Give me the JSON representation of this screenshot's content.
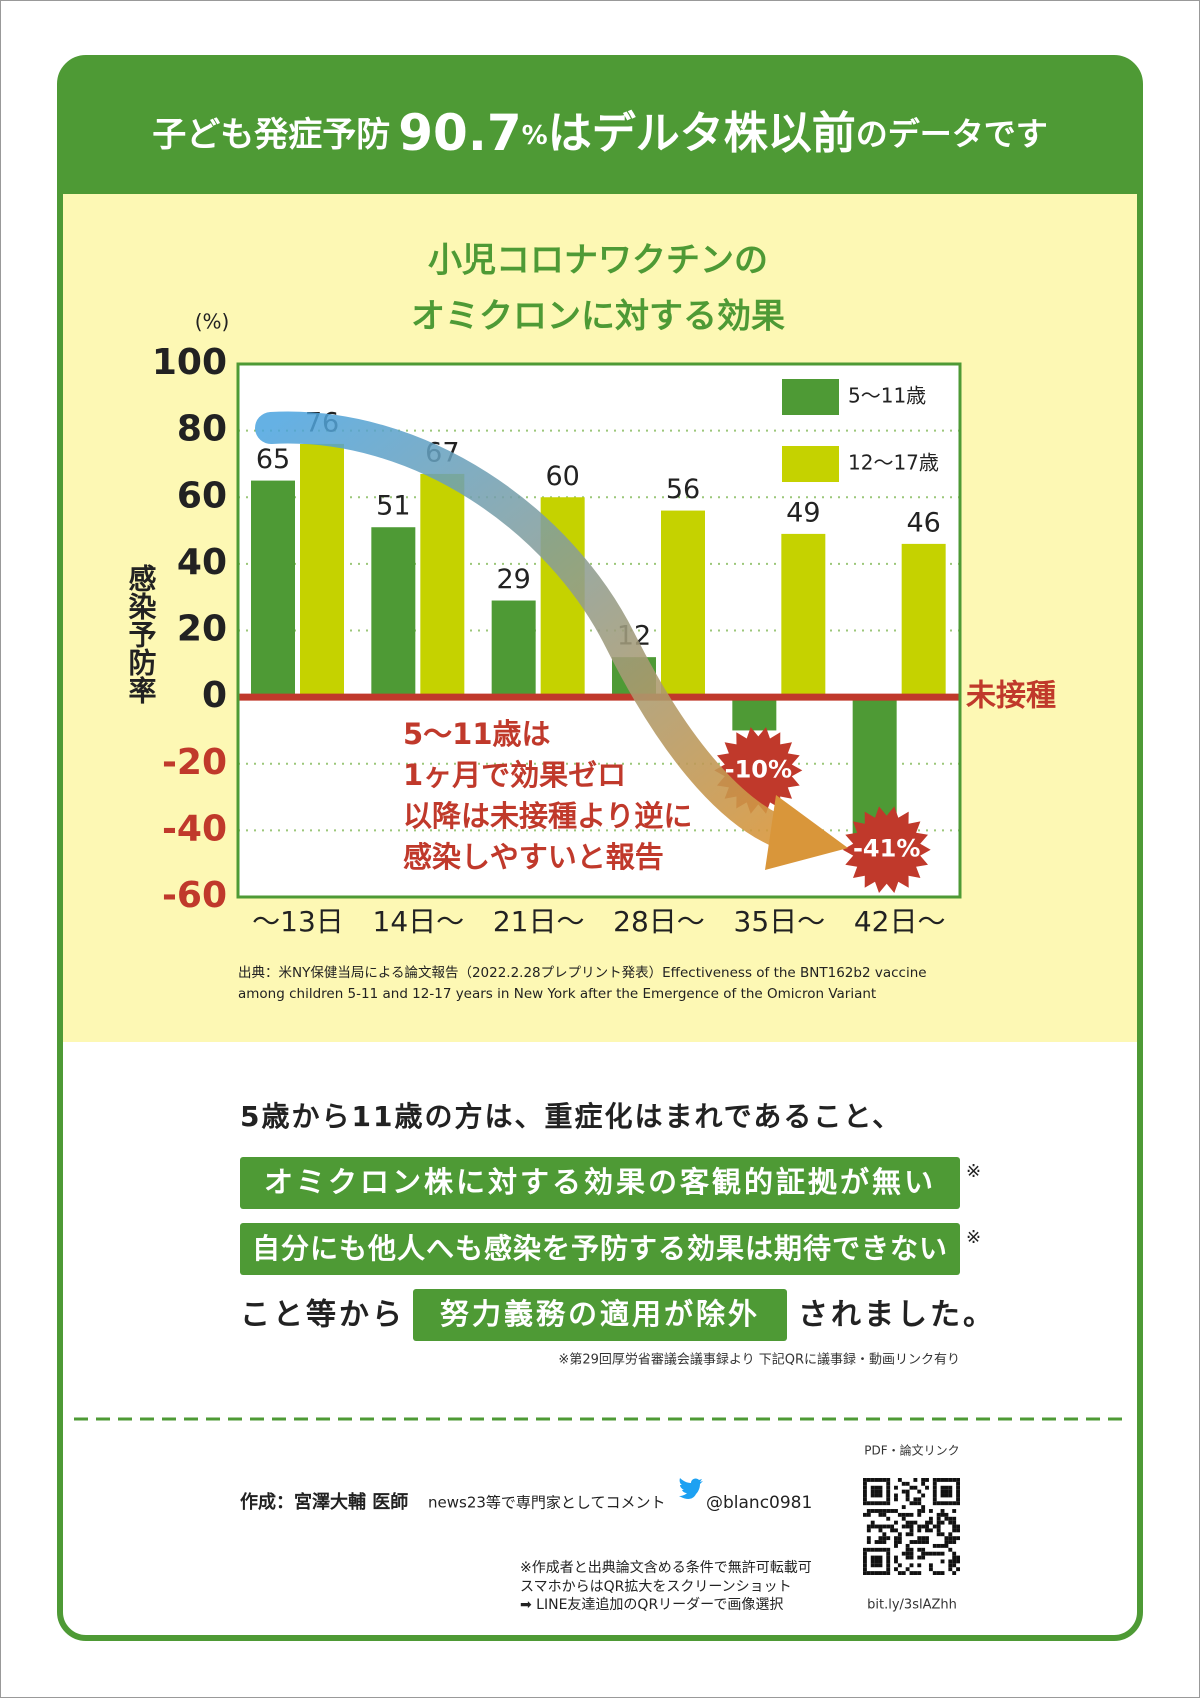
{
  "header": {
    "title_parts": [
      "子ども発症予防",
      "90.7",
      "%",
      "はデルタ株以前",
      "のデータです"
    ]
  },
  "chart_data": {
    "type": "bar",
    "title": [
      "小児コロナワクチンの",
      "オミクロンに対する効果"
    ],
    "y_unit": "(%)",
    "y_label": "感染予防率",
    "categories": [
      "～13日",
      "14日～",
      "21日～",
      "28日～",
      "35日～",
      "42日～"
    ],
    "series": [
      {
        "name": "5～11歳",
        "color": "#4e9a35",
        "values": [
          65,
          51,
          29,
          12,
          -10,
          -41
        ],
        "value_labels": [
          "65",
          "51",
          "29",
          "12",
          "-10%",
          "-41%"
        ]
      },
      {
        "name": "12～17歳",
        "color": "#c5d200",
        "values": [
          76,
          67,
          60,
          56,
          49,
          46
        ]
      }
    ],
    "ylim": [
      -60,
      100
    ],
    "yticks": [
      -60,
      -40,
      -20,
      0,
      20,
      40,
      60,
      80,
      100
    ],
    "grid": true,
    "legend": "top-right",
    "zero_label": "未接種",
    "annotation": [
      "5～11歳は",
      "1ヶ月で効果ゼロ",
      "以降は未接種より逆に",
      "感染しやすいと報告"
    ],
    "source": [
      "出典：米NY保健当局による論文報告（2022.2.28プレプリント発表）Effectiveness of the BNT162b2 vaccine",
      "among children 5-11 and 12-17 years in New York after the Emergence of the Omicron Variant"
    ]
  },
  "body": {
    "intro": "5歳から11歳の方は、重症化はまれであること、",
    "highlight_1": "オミクロン株に対する効果の客観的証拠が無い",
    "highlight_2": "自分にも他人へも感染を予防する効果は期待できない",
    "mark": "※",
    "closing_pre": "こと等から",
    "closing_highlight": "努力義務の適用が除外",
    "closing_post": "されました。",
    "footnote": "※第29回厚労省審議会議事録より 下記QRに議事録・動画リンク有り"
  },
  "footer": {
    "author": "作成：宮澤大輔 医師",
    "comment": "news23等で専門家としてコメント",
    "twitter": "@blanc0981",
    "pdf_label": "PDF・論文リンク",
    "notes": [
      "※作成者と出典論文含める条件で無許可転載可",
      "スマホからはQR拡大をスクリーンショット",
      "➡ LINE友達追加のQRリーダーで画像選択"
    ],
    "url": "bit.ly/3slAZhh"
  }
}
